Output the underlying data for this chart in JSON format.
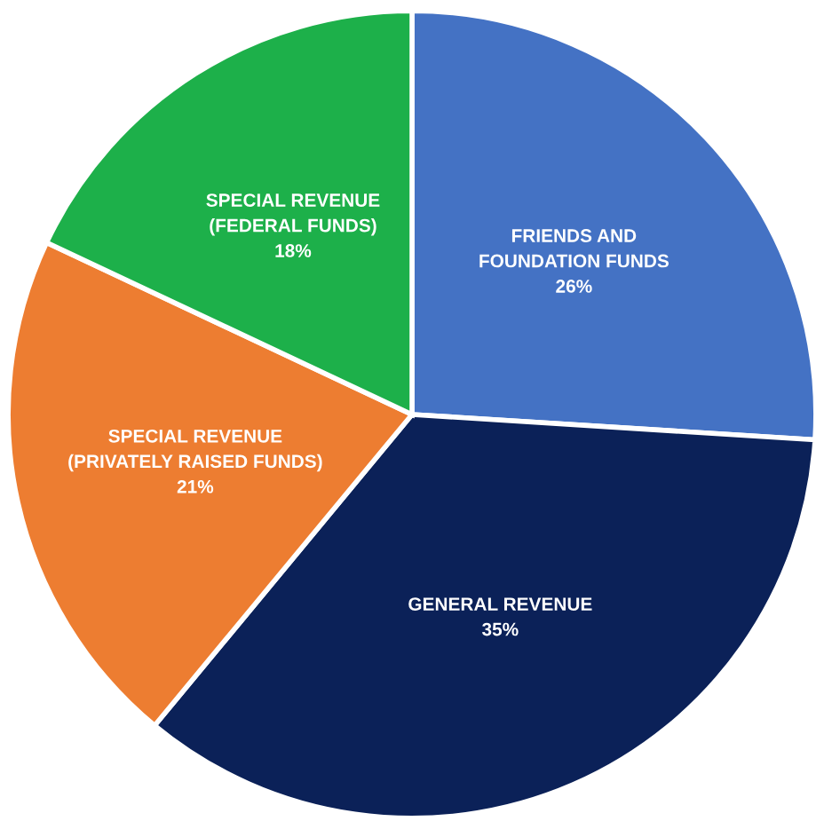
{
  "chart_data": {
    "type": "pie",
    "categories": [
      "FRIENDS AND\nFOUNDATION FUNDS",
      "GENERAL REVENUE",
      "SPECIAL REVENUE\n(PRIVATELY RAISED FUNDS)",
      "SPECIAL REVENUE\n(FEDERAL FUNDS)"
    ],
    "values": [
      26,
      35,
      21,
      18
    ],
    "value_labels": [
      "26%",
      "35%",
      "21%",
      "18%"
    ],
    "colors": [
      "#4472c4",
      "#0b2158",
      "#ed7d31",
      "#1db04a"
    ],
    "legend": false
  }
}
